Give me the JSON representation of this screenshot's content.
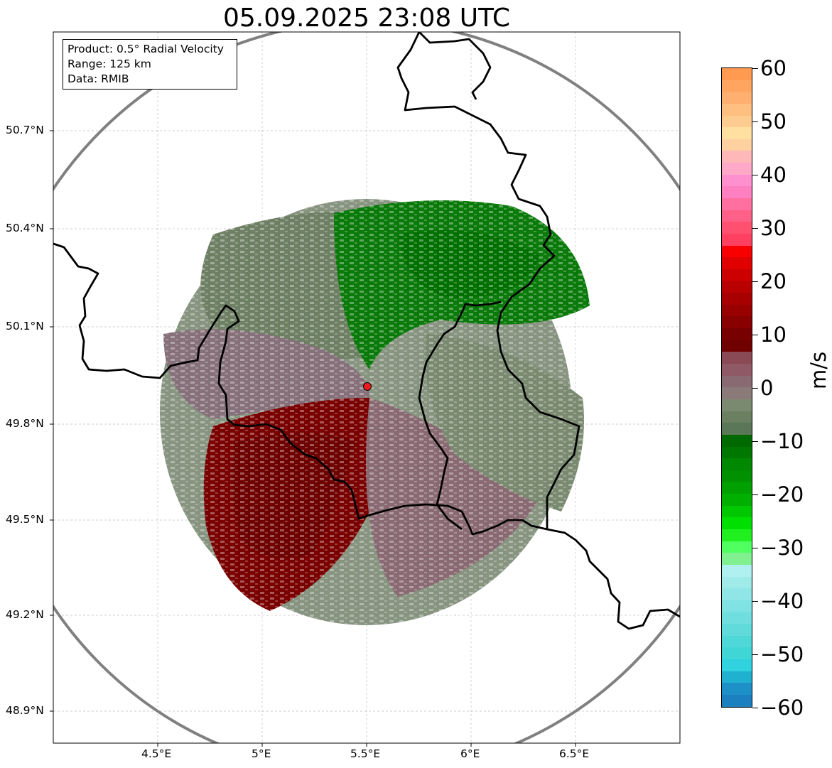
{
  "title": "05.09.2025 23:08 UTC",
  "info": {
    "product": "Product: 0.5° Radial Velocity",
    "range": "Range: 125 km",
    "data": "Data: RMIB"
  },
  "axes": {
    "lat_labels": [
      "50.7°N",
      "50.4°N",
      "50.1°N",
      "49.8°N",
      "49.5°N",
      "49.2°N",
      "48.9°N"
    ],
    "lon_labels": [
      "4.5°E",
      "5°E",
      "5.5°E",
      "6°E",
      "6.5°E"
    ]
  },
  "colorbar": {
    "unit": "m/s",
    "tick_labels": [
      "60",
      "50",
      "40",
      "30",
      "20",
      "10",
      "0",
      "−10",
      "−20",
      "−30",
      "−40",
      "−50",
      "−60"
    ],
    "colors": [
      "#ff9a50",
      "#ffa560",
      "#ffb070",
      "#ffbf80",
      "#ffcc90",
      "#ffe0a0",
      "#ffd0a0",
      "#ffb8b8",
      "#ffa8c8",
      "#ff90d0",
      "#ff80c0",
      "#ff70a0",
      "#ff6088",
      "#ff5070",
      "#ff4060",
      "#f80000",
      "#e00000",
      "#cc0000",
      "#b80000",
      "#a80000",
      "#980000",
      "#880000",
      "#780000",
      "#700000",
      "#8a4a55",
      "#8f5a65",
      "#8a6a72",
      "#8a7a78",
      "#7a8a70",
      "#6a8060",
      "#5a7858",
      "#006a00",
      "#007800",
      "#008800",
      "#009000",
      "#00a000",
      "#00b000",
      "#00c800",
      "#00e000",
      "#20f020",
      "#50ff60",
      "#80f090",
      "#b0f0f0",
      "#a0eaea",
      "#90e6e6",
      "#80e2e2",
      "#70dede",
      "#60dada",
      "#50d8d8",
      "#40d6d6",
      "#30d2e0",
      "#20b0d0",
      "#1e90c8",
      "#1c7fc0"
    ],
    "marker": "radar-site",
    "fill_color": "#ee1c1c"
  }
}
